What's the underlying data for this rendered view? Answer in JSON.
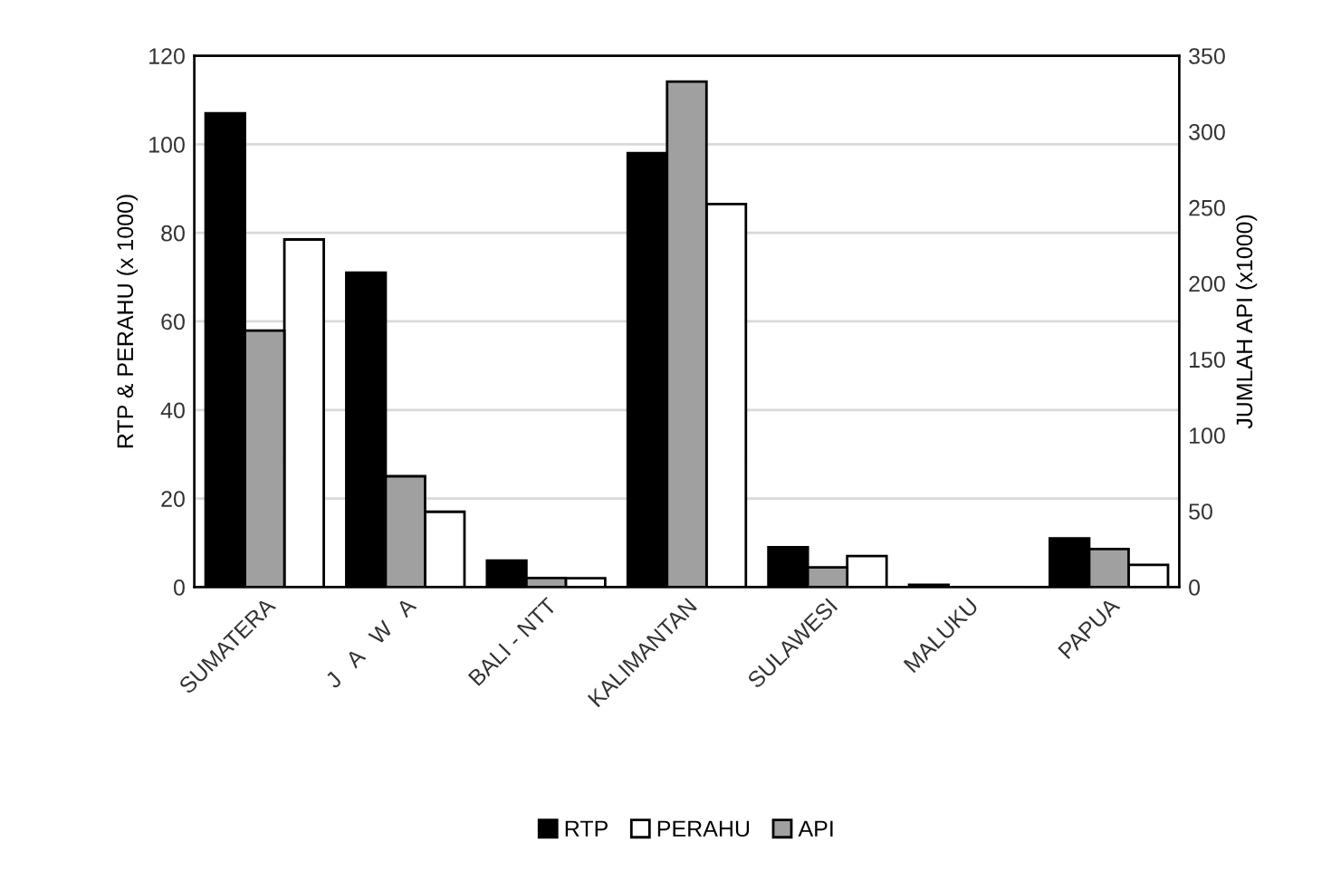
{
  "chart_data": {
    "type": "bar",
    "categories": [
      "SUMATERA",
      "J   A   W   A",
      "BALI - NTT",
      "KALIMANTAN",
      "SULAWESI",
      "MALUKU",
      "PAPUA"
    ],
    "series": [
      {
        "name": "RTP",
        "color": "#000000",
        "values": [
          107,
          71,
          6,
          98,
          9,
          0.5,
          11
        ]
      },
      {
        "name": "PERAHU",
        "color": "#ffffff",
        "values": [
          78.5,
          17,
          2,
          86.5,
          7,
          null,
          5
        ]
      },
      {
        "name": "API",
        "color": "#a0a0a0",
        "axis": "y2",
        "values": [
          169,
          73,
          6,
          333,
          13,
          null,
          25
        ]
      }
    ],
    "ylabel": "RTP & PERAHU (x 1000)",
    "y2label": "JUMLAH API (x1000)",
    "ylim": [
      0,
      120
    ],
    "yticks": [
      0,
      20,
      40,
      60,
      80,
      100,
      120
    ],
    "y2lim": [
      0,
      350
    ],
    "y2ticks": [
      0,
      50,
      100,
      150,
      200,
      250,
      300,
      350
    ],
    "grid": "y",
    "legend": "bottom"
  }
}
